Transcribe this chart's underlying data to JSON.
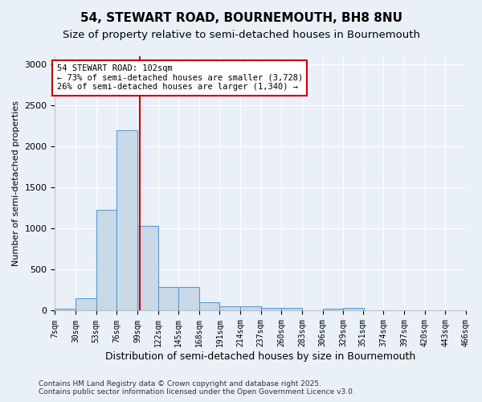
{
  "title": "54, STEWART ROAD, BOURNEMOUTH, BH8 8NU",
  "subtitle": "Size of property relative to semi-detached houses in Bournemouth",
  "xlabel": "Distribution of semi-detached houses by size in Bournemouth",
  "ylabel": "Number of semi-detached properties",
  "bin_labels": [
    "7sqm",
    "30sqm",
    "53sqm",
    "76sqm",
    "99sqm",
    "122sqm",
    "145sqm",
    "168sqm",
    "191sqm",
    "214sqm",
    "237sqm",
    "260sqm",
    "283sqm",
    "306sqm",
    "329sqm",
    "351sqm",
    "374sqm",
    "397sqm",
    "420sqm",
    "443sqm",
    "466sqm"
  ],
  "bin_edges": [
    7,
    30,
    53,
    76,
    99,
    122,
    145,
    168,
    191,
    214,
    237,
    260,
    283,
    306,
    329,
    351,
    374,
    397,
    420,
    443,
    466
  ],
  "bar_heights": [
    20,
    150,
    1230,
    2200,
    1030,
    290,
    290,
    105,
    55,
    55,
    30,
    30,
    0,
    20,
    30,
    0,
    0,
    0,
    0,
    0
  ],
  "bar_color": "#c9d9e8",
  "bar_edge_color": "#5b9bd5",
  "property_size": 102,
  "vline_color": "#cc0000",
  "annotation_text": "54 STEWART ROAD: 102sqm\n← 73% of semi-detached houses are smaller (3,728)\n26% of semi-detached houses are larger (1,340) →",
  "annotation_box_color": "#ffffff",
  "annotation_box_edge_color": "#cc0000",
  "ylim": [
    0,
    3100
  ],
  "yticks": [
    0,
    500,
    1000,
    1500,
    2000,
    2500,
    3000
  ],
  "background_color": "#eaf0f7",
  "footer_text": "Contains HM Land Registry data © Crown copyright and database right 2025.\nContains public sector information licensed under the Open Government Licence v3.0.",
  "title_fontsize": 11,
  "subtitle_fontsize": 9.5
}
